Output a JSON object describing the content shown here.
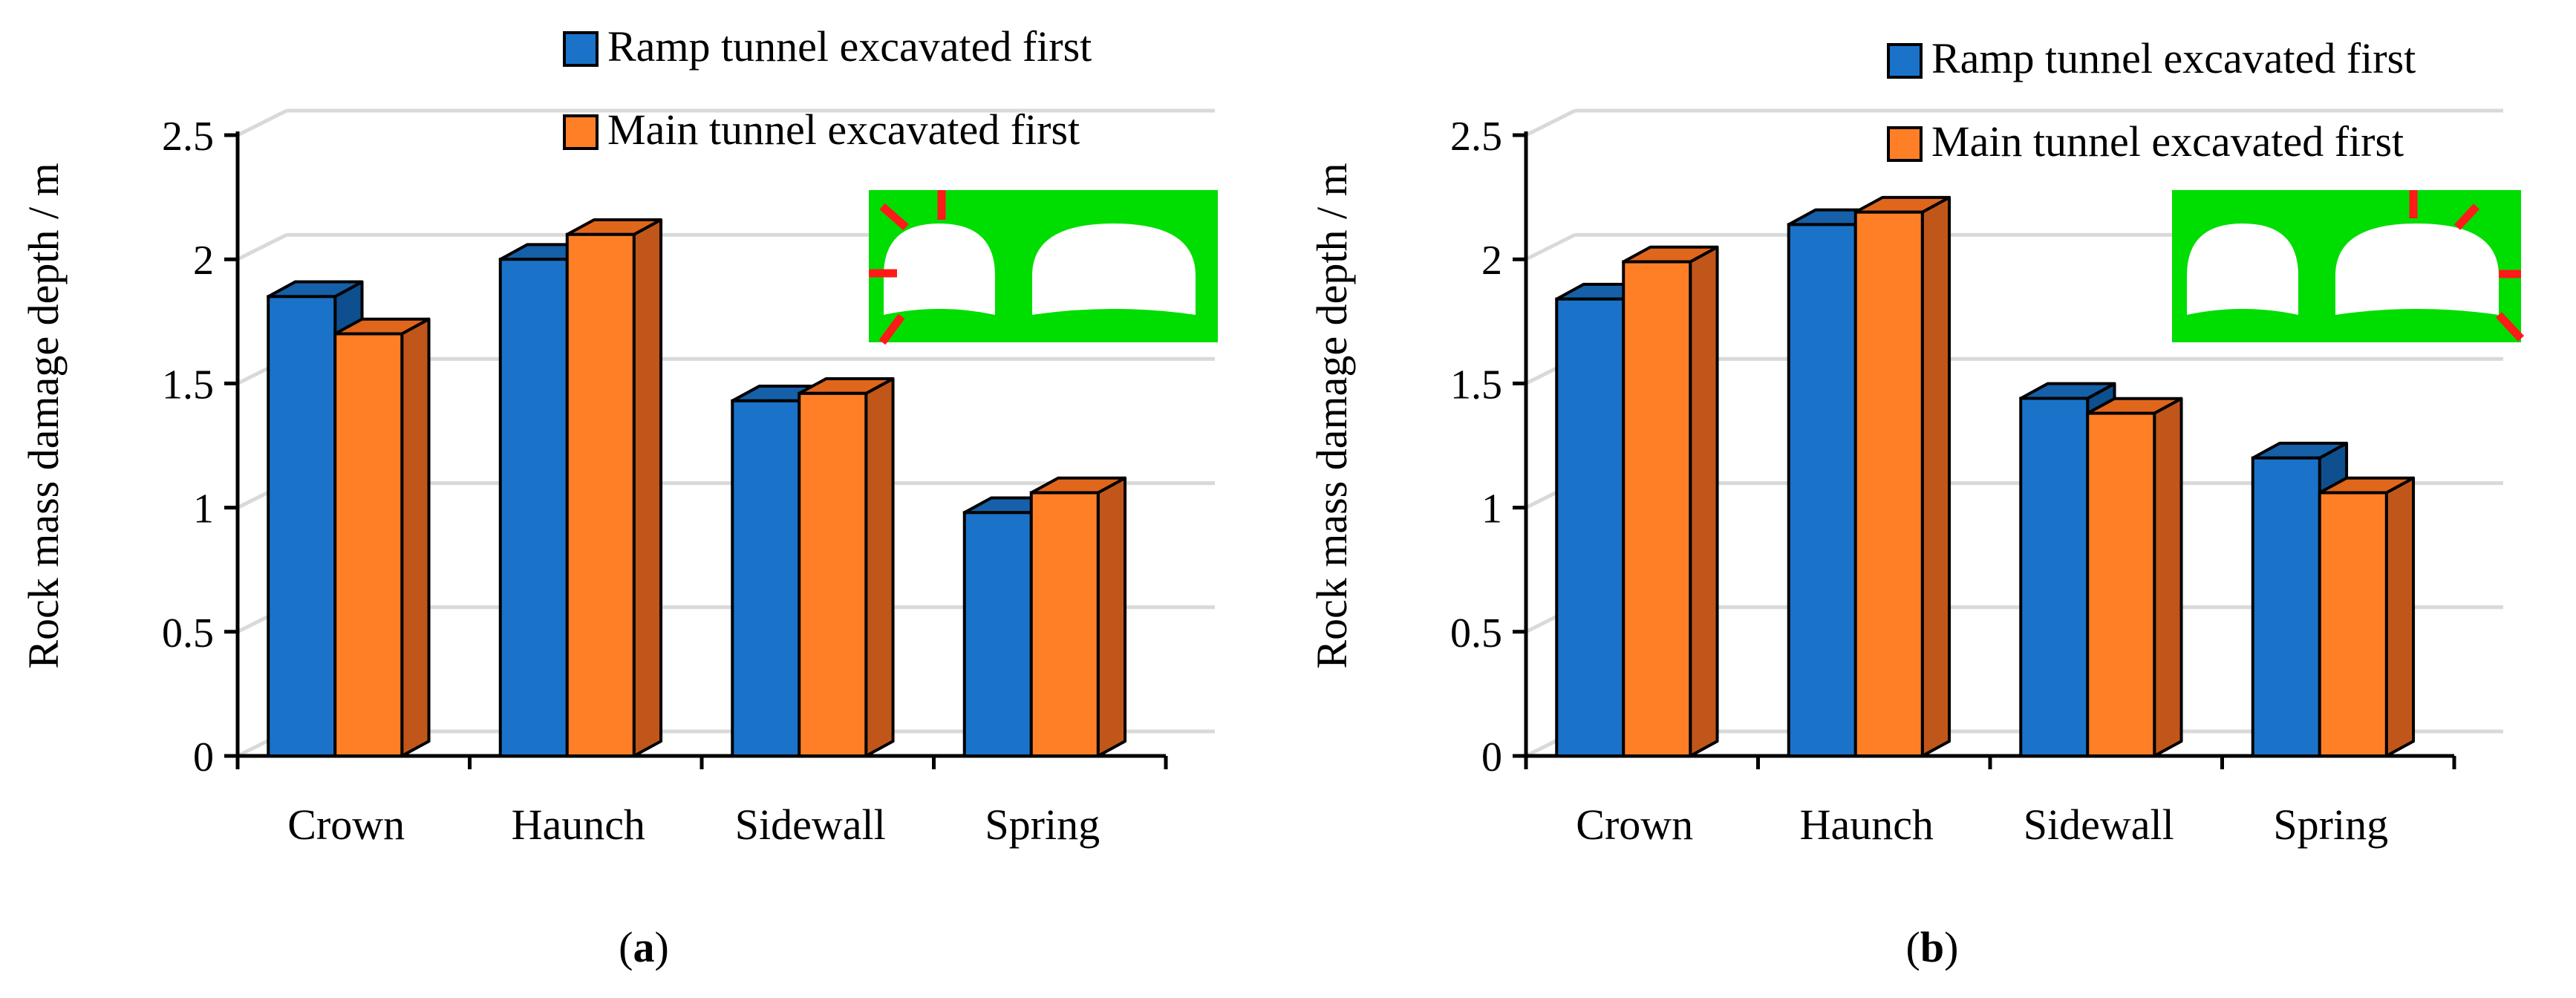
{
  "chart_data": [
    {
      "type": "bar",
      "panel_label": "a",
      "categories": [
        "Crown",
        "Haunch",
        "Sidewall",
        "Spring"
      ],
      "series": [
        {
          "name": "Ramp tunnel excavated first",
          "color": "#1a73c9",
          "values": [
            1.85,
            2.0,
            1.43,
            0.98
          ]
        },
        {
          "name": "Main tunnel excavated first",
          "color": "#ff7f27",
          "values": [
            1.7,
            2.1,
            1.46,
            1.06
          ]
        }
      ],
      "ylabel": "Rock mass damage depth / m",
      "xlabel": "",
      "ylim": [
        0,
        2.5
      ],
      "yticks": [
        "0",
        "0.5",
        "1",
        "1.5",
        "2",
        "2.5"
      ],
      "grid": true,
      "legend": "top-right",
      "inset": {
        "description_icon": "tunnel-cross-section-left-measured"
      }
    },
    {
      "type": "bar",
      "panel_label": "b",
      "categories": [
        "Crown",
        "Haunch",
        "Sidewall",
        "Spring"
      ],
      "series": [
        {
          "name": "Ramp tunnel excavated first",
          "color": "#1a73c9",
          "values": [
            1.84,
            2.14,
            1.44,
            1.2
          ]
        },
        {
          "name": "Main tunnel excavated first",
          "color": "#ff7f27",
          "values": [
            1.99,
            2.19,
            1.38,
            1.06
          ]
        }
      ],
      "ylabel": "Rock mass damage depth / m",
      "xlabel": "",
      "ylim": [
        0,
        2.5
      ],
      "yticks": [
        "0",
        "0.5",
        "1",
        "1.5",
        "2",
        "2.5"
      ],
      "grid": true,
      "legend": "top-right",
      "inset": {
        "description_icon": "tunnel-cross-section-right-measured"
      }
    }
  ],
  "colors": {
    "ramp_front": "#1a73c9",
    "ramp_side": "#0d4f8f",
    "ramp_top": "#1560a8",
    "main_front": "#ff7f27",
    "main_side": "#c1561a",
    "main_top": "#e0661c",
    "grid": "#d9d9d9",
    "inset_bg": "#00dd00",
    "marker": "#ff1a1a"
  }
}
